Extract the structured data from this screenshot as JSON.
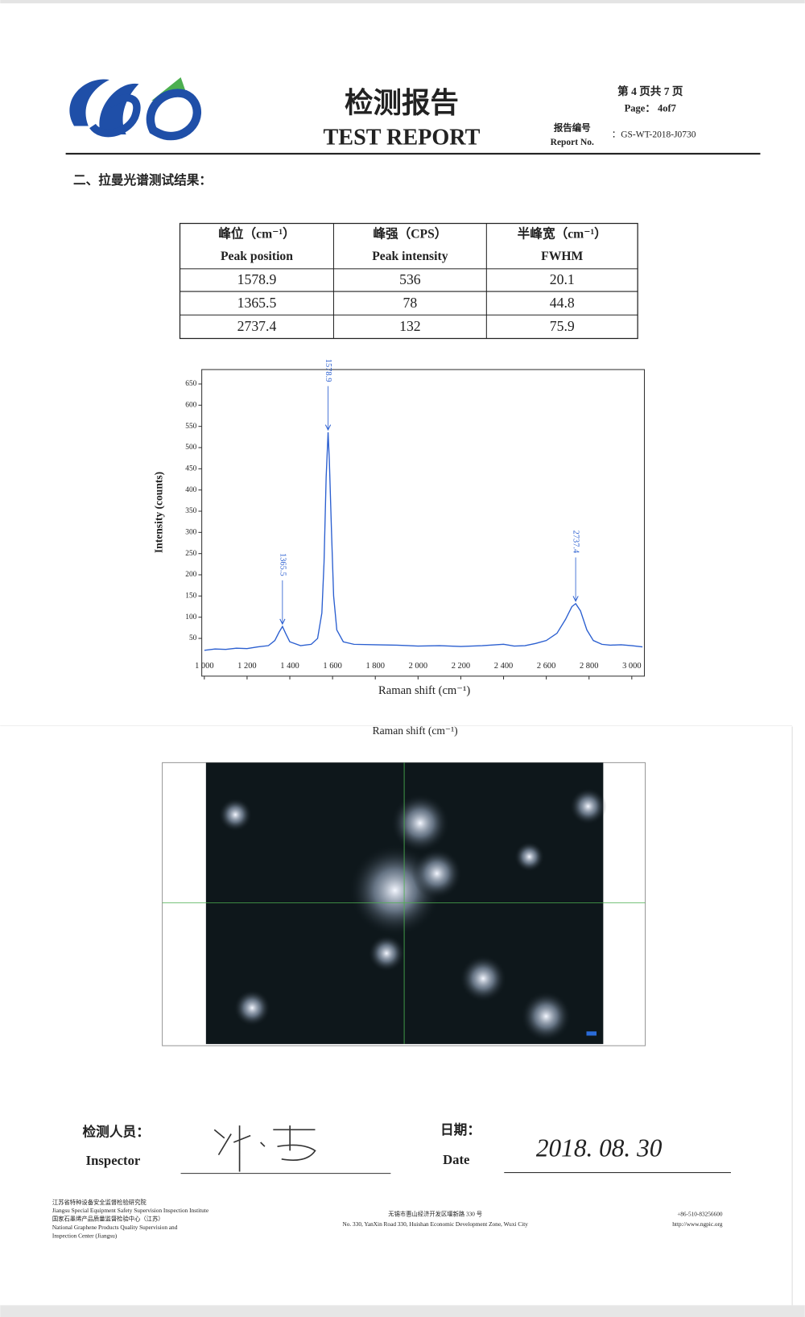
{
  "header": {
    "title_cn": "检测报告",
    "title_en": "TEST REPORT",
    "page_cn": "第 4 页共 7 页",
    "page_en": "Page： 4of7",
    "report_no_cn": "报告编号",
    "report_no_en": "Report No.",
    "report_no": "：GS-WT-2018-J0730"
  },
  "section_title": "二、拉曼光谱测试结果：",
  "table": {
    "header": [
      [
        "峰位（cm⁻¹）",
        "Peak position"
      ],
      [
        "峰强（CPS）",
        "Peak intensity"
      ],
      [
        "半峰宽（cm⁻¹）",
        "FWHM"
      ]
    ],
    "rows": [
      [
        1578.9,
        536,
        20.1
      ],
      [
        1365.5,
        78,
        44.8
      ],
      [
        2737.4,
        132,
        75.9
      ]
    ]
  },
  "chart_data": {
    "type": "line",
    "x_label": "Raman shift (cm⁻¹)",
    "y_label": "Intensity (counts)",
    "color": "#2b5fd0",
    "x": [
      1000,
      1050,
      1100,
      1150,
      1200,
      1250,
      1300,
      1330,
      1350,
      1365.5,
      1380,
      1400,
      1450,
      1500,
      1530,
      1550,
      1560,
      1570,
      1578.9,
      1585,
      1595,
      1605,
      1620,
      1650,
      1700,
      1800,
      1900,
      2000,
      2100,
      2200,
      2300,
      2400,
      2450,
      2500,
      2550,
      2600,
      2650,
      2690,
      2720,
      2737.4,
      2760,
      2790,
      2820,
      2860,
      2900,
      2950,
      3000,
      3050
    ],
    "values": [
      22,
      25,
      24,
      27,
      26,
      30,
      33,
      45,
      65,
      78,
      62,
      42,
      33,
      36,
      50,
      110,
      230,
      430,
      536,
      470,
      300,
      150,
      70,
      42,
      36,
      35,
      34,
      32,
      33,
      31,
      33,
      36,
      32,
      33,
      38,
      45,
      62,
      95,
      125,
      132,
      115,
      70,
      45,
      36,
      34,
      35,
      33,
      30
    ],
    "xlim": [
      988,
      3059
    ],
    "ylim": [
      -39,
      684
    ],
    "xticks": [
      {
        "value": 1000,
        "label": "1 000"
      },
      {
        "value": 1200,
        "label": "1 200"
      },
      {
        "value": 1400,
        "label": "1 400"
      },
      {
        "value": 1600,
        "label": "1 600"
      },
      {
        "value": 1800,
        "label": "1 800"
      },
      {
        "value": 2000,
        "label": "2 000"
      },
      {
        "value": 2200,
        "label": "2 200"
      },
      {
        "value": 2400,
        "label": "2 400"
      },
      {
        "value": 2600,
        "label": "2 600"
      },
      {
        "value": 2800,
        "label": "2 800"
      },
      {
        "value": 3000,
        "label": "3 000"
      }
    ],
    "yticks": [
      50,
      100,
      150,
      200,
      250,
      300,
      350,
      400,
      450,
      500,
      550,
      600,
      650
    ],
    "peak_labels": [
      {
        "x": 1365.5,
        "y": 78
      },
      {
        "x": 1578.9,
        "y": 536
      },
      {
        "x": 2737.4,
        "y": 132
      }
    ]
  },
  "image_caption": "Raman shift (cm⁻¹)",
  "signature": {
    "inspector_cn": "检测人员：",
    "inspector_en": "Inspector",
    "date_cn": "日期：",
    "date_en": "Date",
    "date": "2018. 08. 30"
  },
  "footer": {
    "left": [
      "江苏省特种设备安全监督检验研究院",
      "Jiangsu Special Equipment Safety Supervision Inspection Institute",
      "国家石墨烯产品质量监督检验中心（江苏）",
      "National Graphene Products Quality Supervision and",
      "Inspection Center (Jiangsu)"
    ],
    "middle": [
      "无锡市惠山经济开发区堰新路 330 号",
      "No. 330, YanXin Road 330, Huishan Economic Development Zone, Wuxi City"
    ],
    "right": [
      "+86-510-83256600",
      "http://www.ngpic.org"
    ]
  }
}
